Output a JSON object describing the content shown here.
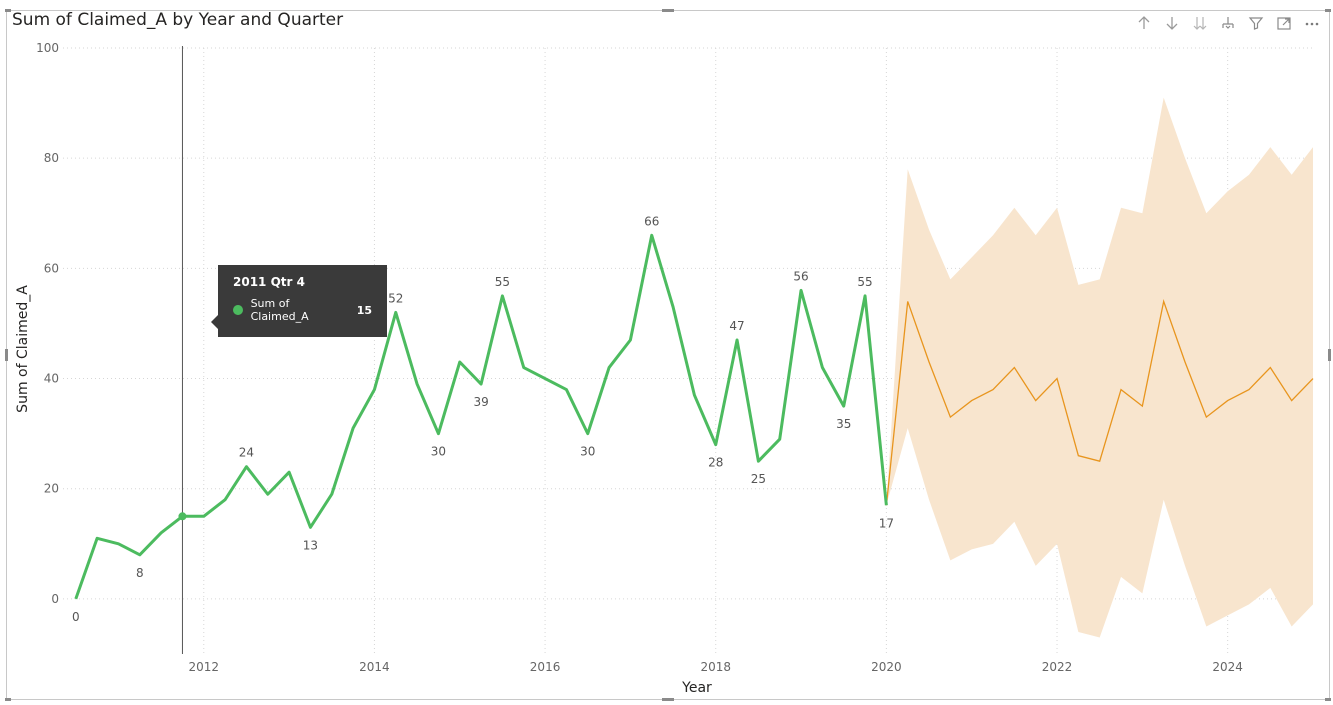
{
  "visual": {
    "title": "Sum of Claimed_A by Year and Quarter"
  },
  "toolbar": {
    "icons": [
      "drill-up-icon",
      "drill-down-icon",
      "expand-all-icon",
      "expand-hierarchy-icon",
      "filter-icon",
      "focus-mode-icon",
      "more-options-icon"
    ]
  },
  "tooltip": {
    "title": "2011 Qtr 4",
    "series": "Sum of Claimed_A",
    "value": "15"
  },
  "chart_data": {
    "type": "line",
    "title": "Sum of Claimed_A by Year and Quarter",
    "xlabel": "Year",
    "ylabel": "Sum of Claimed_A",
    "xlim": [
      2010.35,
      2025.0
    ],
    "ylim": [
      -10,
      100
    ],
    "x_ticks": [
      2012,
      2014,
      2016,
      2018,
      2020,
      2022,
      2024
    ],
    "y_ticks": [
      0,
      20,
      40,
      60,
      80,
      100
    ],
    "grid": true,
    "colors": {
      "actual": "#4cbb5f",
      "forecast": "#e8951e",
      "band": "#f8e5ce",
      "crosshair": "#555555"
    },
    "series": [
      {
        "name": "Sum of Claimed_A",
        "x": [
          2010.5,
          2010.75,
          2011.0,
          2011.25,
          2011.5,
          2011.75,
          2012.0,
          2012.25,
          2012.5,
          2012.75,
          2013.0,
          2013.25,
          2013.5,
          2013.75,
          2014.0,
          2014.25,
          2014.5,
          2014.75,
          2015.0,
          2015.25,
          2015.5,
          2015.75,
          2016.0,
          2016.25,
          2016.5,
          2016.75,
          2017.0,
          2017.25,
          2017.5,
          2017.75,
          2018.0,
          2018.25,
          2018.5,
          2018.75,
          2019.0,
          2019.25,
          2019.5,
          2019.75,
          2020.0
        ],
        "values": [
          0,
          11,
          10,
          8,
          12,
          15,
          15,
          18,
          24,
          19,
          23,
          13,
          19,
          31,
          38,
          52,
          39,
          30,
          43,
          39,
          55,
          42,
          40,
          38,
          30,
          42,
          47,
          66,
          53,
          37,
          28,
          47,
          25,
          29,
          56,
          42,
          35,
          55,
          17
        ]
      }
    ],
    "forecast": {
      "x": [
        2020.0,
        2020.25,
        2020.5,
        2020.75,
        2021.0,
        2021.25,
        2021.5,
        2021.75,
        2022.0,
        2022.25,
        2022.5,
        2022.75,
        2023.0,
        2023.25,
        2023.5,
        2023.75,
        2024.0,
        2024.25,
        2024.5,
        2024.75,
        2025.0
      ],
      "values": [
        17,
        54,
        43,
        33,
        36,
        38,
        42,
        36,
        40,
        26,
        25,
        38,
        35,
        54,
        43,
        33,
        36,
        38,
        42,
        36,
        40
      ],
      "upper": [
        17,
        78,
        67,
        58,
        62,
        66,
        71,
        66,
        71,
        57,
        58,
        71,
        70,
        91,
        80,
        70,
        74,
        77,
        82,
        77,
        82
      ],
      "lower": [
        17,
        31,
        18,
        7,
        9,
        10,
        14,
        6,
        10,
        -6,
        -7,
        4,
        1,
        18,
        6,
        -5,
        -3,
        -1,
        2,
        -5,
        -1
      ]
    },
    "data_labels": [
      {
        "x": 2010.5,
        "y": 0,
        "text": "0",
        "pos": "below"
      },
      {
        "x": 2011.25,
        "y": 8,
        "text": "8",
        "pos": "below"
      },
      {
        "x": 2012.5,
        "y": 24,
        "text": "24",
        "pos": "above"
      },
      {
        "x": 2013.25,
        "y": 13,
        "text": "13",
        "pos": "below"
      },
      {
        "x": 2014.25,
        "y": 52,
        "text": "52",
        "pos": "above"
      },
      {
        "x": 2014.75,
        "y": 30,
        "text": "30",
        "pos": "below"
      },
      {
        "x": 2015.25,
        "y": 39,
        "text": "39",
        "pos": "below"
      },
      {
        "x": 2015.5,
        "y": 55,
        "text": "55",
        "pos": "above"
      },
      {
        "x": 2016.5,
        "y": 30,
        "text": "30",
        "pos": "below"
      },
      {
        "x": 2017.25,
        "y": 66,
        "text": "66",
        "pos": "above"
      },
      {
        "x": 2018.0,
        "y": 28,
        "text": "28",
        "pos": "below"
      },
      {
        "x": 2018.25,
        "y": 47,
        "text": "47",
        "pos": "above"
      },
      {
        "x": 2018.5,
        "y": 25,
        "text": "25",
        "pos": "below"
      },
      {
        "x": 2019.0,
        "y": 56,
        "text": "56",
        "pos": "above"
      },
      {
        "x": 2019.5,
        "y": 35,
        "text": "35",
        "pos": "below"
      },
      {
        "x": 2019.75,
        "y": 55,
        "text": "55",
        "pos": "above"
      },
      {
        "x": 2020.0,
        "y": 17,
        "text": "17",
        "pos": "below"
      }
    ],
    "hover": {
      "x": 2011.75,
      "y": 15
    }
  }
}
